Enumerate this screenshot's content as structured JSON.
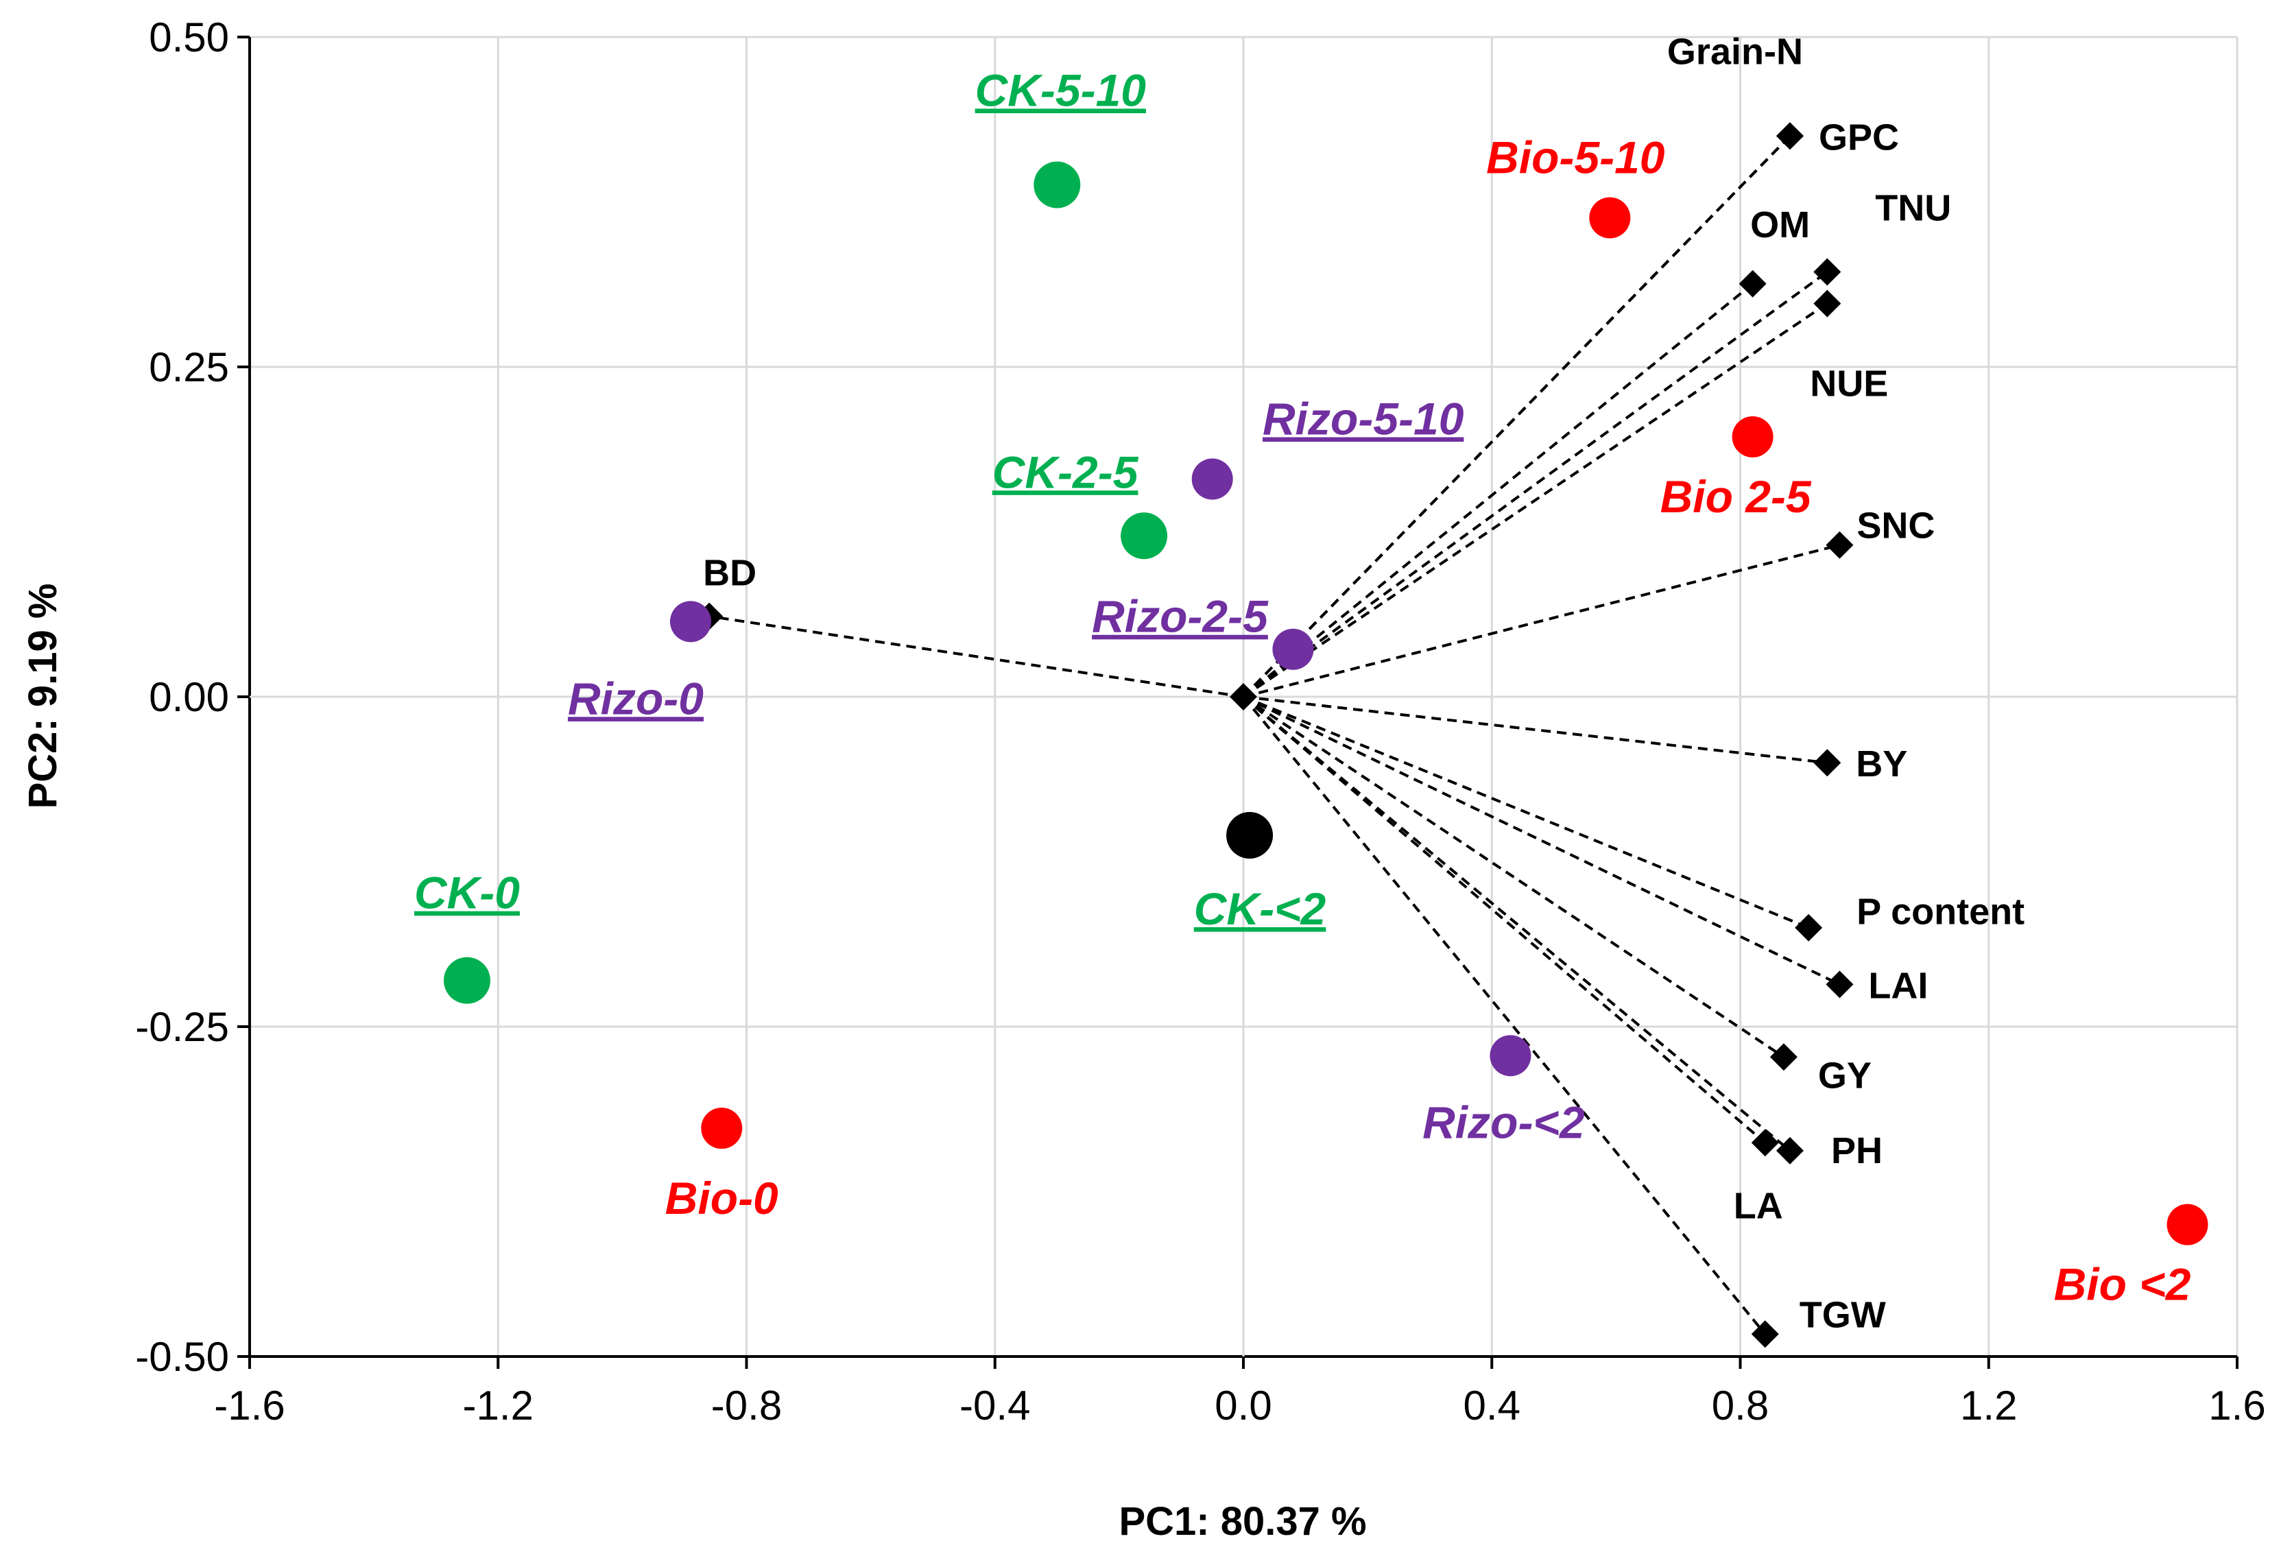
{
  "chart_data": {
    "type": "scatter",
    "subtype": "pca-biplot",
    "xlabel": "PC1: 80.37 %",
    "ylabel": "PC2: 9.19 %",
    "xlim": [
      -1.6,
      1.6
    ],
    "ylim": [
      -0.5,
      0.5
    ],
    "xticks": [
      "-1.6",
      "-1.2",
      "-0.8",
      "-0.4",
      "0.0",
      "0.4",
      "0.8",
      "1.2",
      "1.6"
    ],
    "xtick_values": [
      -1.6,
      -1.2,
      -0.8,
      -0.4,
      0.0,
      0.4,
      0.8,
      1.2,
      1.6
    ],
    "yticks": [
      "0.50",
      "0.25",
      "0.00",
      "-0.25",
      "-0.50"
    ],
    "ytick_values": [
      0.5,
      0.25,
      0.0,
      -0.25,
      -0.5
    ],
    "grid": "vertical and horizontal at ticks",
    "loadings": [
      {
        "name": "Grain-N",
        "x": 0.88,
        "y": 0.425,
        "label_pos": "above-left"
      },
      {
        "name": "GPC",
        "x": 0.88,
        "y": 0.425,
        "label_pos": "right"
      },
      {
        "name": "OM",
        "x": 0.82,
        "y": 0.313,
        "label_pos": "above"
      },
      {
        "name": "TNU",
        "x": 0.94,
        "y": 0.322,
        "label_pos": "above-right"
      },
      {
        "name": "NUE",
        "x": 0.94,
        "y": 0.298,
        "label_pos": "below"
      },
      {
        "name": "SNC",
        "x": 0.96,
        "y": 0.115,
        "label_pos": "above-right"
      },
      {
        "name": "BD",
        "x": -0.86,
        "y": 0.061,
        "label_pos": "above"
      },
      {
        "name": "BY",
        "x": 0.94,
        "y": -0.05,
        "label_pos": "right"
      },
      {
        "name": "P content",
        "x": 0.91,
        "y": -0.175,
        "label_pos": "above-right"
      },
      {
        "name": "LAI",
        "x": 0.96,
        "y": -0.218,
        "label_pos": "right"
      },
      {
        "name": "GY",
        "x": 0.87,
        "y": -0.273,
        "label_pos": "below-right"
      },
      {
        "name": "PH",
        "x": 0.88,
        "y": -0.344,
        "label_pos": "right"
      },
      {
        "name": "LA",
        "x": 0.84,
        "y": -0.338,
        "label_pos": "below"
      },
      {
        "name": "TGW",
        "x": 0.84,
        "y": -0.483,
        "label_pos": "right"
      }
    ],
    "observations": [
      {
        "name": "CK-5-10",
        "x": -0.3,
        "y": 0.388,
        "group": "CK",
        "underline": true,
        "label_pos": "above"
      },
      {
        "name": "CK-2-5",
        "x": -0.16,
        "y": 0.122,
        "group": "CK",
        "underline": true,
        "label_pos": "above-left"
      },
      {
        "name": "CK-0",
        "x": -1.25,
        "y": -0.215,
        "group": "CK",
        "underline": true,
        "label_pos": "above"
      },
      {
        "name": "CK-<2",
        "x": 0.01,
        "y": -0.105,
        "group": "CK-black",
        "underline": true,
        "label_pos": "below"
      },
      {
        "name": "Rizo-5-10",
        "x": -0.05,
        "y": 0.165,
        "group": "Rizo",
        "underline": true,
        "label_pos": "above-right"
      },
      {
        "name": "Rizo-2-5",
        "x": 0.08,
        "y": 0.036,
        "group": "Rizo",
        "underline": true,
        "label_pos": "above-left"
      },
      {
        "name": "Rizo-0",
        "x": -0.89,
        "y": 0.057,
        "group": "Rizo",
        "underline": true,
        "label_pos": "below"
      },
      {
        "name": "Rizo-<2",
        "x": 0.43,
        "y": -0.272,
        "group": "Rizo",
        "underline": false,
        "label_pos": "below"
      },
      {
        "name": "Bio-5-10",
        "x": 0.59,
        "y": 0.363,
        "group": "Bio",
        "underline": false,
        "label_pos": "above"
      },
      {
        "name": "Bio 2-5",
        "x": 0.82,
        "y": 0.197,
        "group": "Bio",
        "underline": false,
        "label_pos": "below"
      },
      {
        "name": "Bio-0",
        "x": -0.84,
        "y": -0.327,
        "group": "Bio",
        "underline": false,
        "label_pos": "below"
      },
      {
        "name": "Bio <2",
        "x": 1.52,
        "y": -0.4,
        "group": "Bio",
        "underline": false,
        "label_pos": "below-left"
      }
    ],
    "group_colors": {
      "CK": "#00b050",
      "CK-black": "#000000",
      "Rizo": "#7030a0",
      "Bio": "#ff0000"
    },
    "label_colors": {
      "CK": "#00b050",
      "CK-black": "#00b050",
      "Rizo": "#7030a0",
      "Bio": "#ff0000"
    }
  }
}
